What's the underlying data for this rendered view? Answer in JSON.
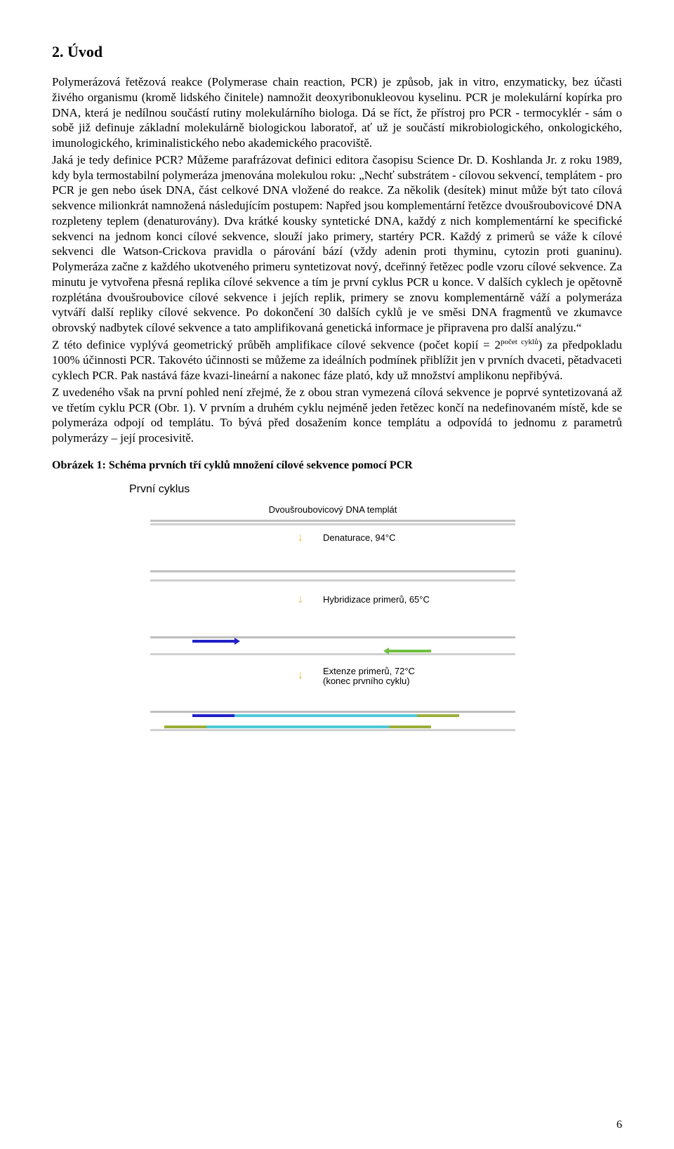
{
  "heading": "2. Úvod",
  "para1": "Polymerázová řetězová reakce (Polymerase chain reaction, PCR) je způsob, jak in vitro, enzymaticky, bez účasti živého organismu (kromě lidského činitele) namnožit deoxyribonukleovou kyselinu. PCR je molekulární kopírka pro DNA, která je nedílnou součástí rutiny molekulárního biologa. Dá se říct, že přístroj pro PCR - termocyklér - sám o sobě již definuje základní molekulárně biologickou laboratoř, ať už je součástí mikrobiologického, onkologického, imunologického, kriminalistického nebo akademického pracoviště.",
  "para2": "Jaká je tedy definice PCR? Můžeme parafrázovat definici editora časopisu Science Dr. D. Koshlanda Jr. z roku 1989, kdy byla termostabilní polymeráza jmenována molekulou roku: „Nechť substrátem - cílovou sekvencí, templátem - pro PCR je gen nebo úsek DNA, část celkové DNA vložené do reakce. Za několik (desítek) minut může být tato cílová sekvence milionkrát namnožená následujícím postupem: Napřed jsou komplementární řetězce dvoušroubovicové DNA rozpleteny teplem (denaturovány). Dva krátké kousky syntetické DNA, každý z nich komplementární ke specifické sekvenci na jednom konci cílové sekvence, slouží jako primery, startéry PCR. Každý z primerů se váže k cílové sekvenci dle Watson-Crickova pravidla o párování bází (vždy adenin proti thyminu, cytozin proti guaninu). Polymeráza začne z každého ukotveného primeru syntetizovat nový, dceřinný řetězec podle vzoru cílové sekvence. Za minutu je vytvořena přesná replika cílové sekvence a tím je první cyklus PCR u konce. V dalších cyklech je opětovně rozplétána dvoušroubovice cílové sekvence i jejích replik, primery se znovu komplementárně váží a polymeráza vytváří další repliky cílové sekvence. Po dokončení 30 dalších cyklů je ve směsi DNA fragmentů ve zkumavce obrovský nadbytek cílové sekvence a tato amplifikovaná genetická informace je připravena pro další analýzu.“",
  "para3a": "Z této definice vyplývá geometrický průběh amplifikace cílové sekvence (počet kopií = 2",
  "para3sup": "počet cyklů",
  "para3b": ") za předpokladu 100% účinnosti PCR. Takovéto účinnosti se můžeme za ideálních podmínek přiblížit jen v prvních dvaceti, pětadvaceti cyklech PCR. Pak nastává fáze kvazi-lineární a nakonec fáze plató, kdy už množství amplikonu nepřibývá.",
  "para4": "Z uvedeného však na první pohled není zřejmé, že z obou stran vymezená cílová sekvence je poprvé syntetizovaná až ve třetím cyklu PCR (Obr. 1). V prvním a druhém cyklu nejméně jeden řetězec končí na nedefinovaném místě, kde se polymeráza odpojí od templátu. To bývá před dosažením konce templátu a odpovídá to jednomu z parametrů polymerázy – její procesivitě.",
  "figCaption": "Obrázek 1: Schéma prvních tří cyklů množení cílové sekvence pomocí PCR",
  "cycleTitle": "První cyklus",
  "templateLabel": "Dvoušroubovicový DNA templát",
  "step1": "Denaturace, 94°C",
  "step2": "Hybridizace primerů, 65°C",
  "step3a": "Extenze primerů, 72°C",
  "step3b": "(konec prvního cyklu)",
  "pageNum": "6",
  "colors": {
    "grey": "#bfbfbf",
    "lightgrey": "#d0d0d0",
    "darkblue": "#2020c8",
    "green": "#70c040",
    "olive": "#9cae3a",
    "cyan": "#4fc8d8",
    "arrowYellow": "#e8b030"
  }
}
